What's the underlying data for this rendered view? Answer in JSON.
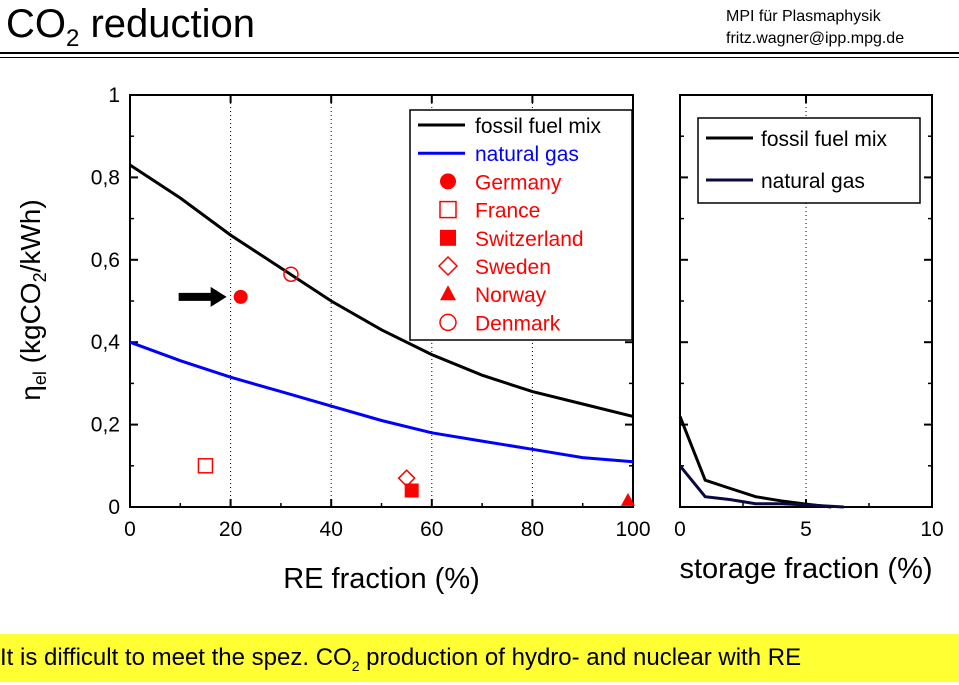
{
  "header": {
    "title_main": "CO",
    "title_sub": "2",
    "title_rest": " reduction",
    "affiliation_line1": "MPI für Plasmaphysik",
    "affiliation_line2": "fritz.wagner@ipp.mpg.de"
  },
  "footer": {
    "text_before": "It is difficult to meet the spez. CO",
    "text_sub": "2",
    "text_after": " production of hydro- and nuclear with RE",
    "background": "#ffff33"
  },
  "chart_data": [
    {
      "type": "line",
      "xlabel": "RE fraction (%)",
      "ylabel_main": "η",
      "ylabel_sub": "el",
      "ylabel_rest": " (kgCO",
      "ylabel_sub2": "2",
      "ylabel_end": "/kWh)",
      "xlim": [
        0,
        100
      ],
      "ylim": [
        0,
        1
      ],
      "x_ticks": [
        "0",
        "20",
        "40",
        "60",
        "80",
        "100"
      ],
      "y_ticks": [
        "0",
        "0,2",
        "0,4",
        "0,6",
        "0,8",
        "1"
      ],
      "grid": "vertical dotted",
      "legend_position": "top-right",
      "series": [
        {
          "name": "fossil fuel mix",
          "color": "#000000",
          "x": [
            0,
            10,
            20,
            30,
            40,
            50,
            60,
            70,
            80,
            90,
            100
          ],
          "y": [
            0.83,
            0.75,
            0.66,
            0.58,
            0.5,
            0.43,
            0.37,
            0.32,
            0.28,
            0.25,
            0.22
          ]
        },
        {
          "name": "natural gas",
          "color": "#0000ff",
          "x": [
            0,
            10,
            20,
            30,
            40,
            50,
            60,
            70,
            80,
            90,
            100
          ],
          "y": [
            0.4,
            0.355,
            0.315,
            0.28,
            0.245,
            0.21,
            0.18,
            0.16,
            0.14,
            0.12,
            0.11
          ]
        }
      ],
      "points": [
        {
          "name": "Germany",
          "marker": "filled-circle",
          "color": "#ff0000",
          "x": 22,
          "y": 0.51
        },
        {
          "name": "France",
          "marker": "open-square",
          "color": "#ff0000",
          "x": 15,
          "y": 0.1
        },
        {
          "name": "Switzerland",
          "marker": "filled-square",
          "color": "#ff0000",
          "x": 56,
          "y": 0.04
        },
        {
          "name": "Sweden",
          "marker": "open-diamond",
          "color": "#ff0000",
          "x": 55,
          "y": 0.07
        },
        {
          "name": "Norway",
          "marker": "filled-triangle",
          "color": "#ff0000",
          "x": 99,
          "y": 0.015
        },
        {
          "name": "Denmark",
          "marker": "open-circle",
          "color": "#ff0000",
          "x": 32,
          "y": 0.565
        }
      ],
      "arrow_target": "Germany"
    },
    {
      "type": "line",
      "xlabel": "storage fraction (%)",
      "xlim": [
        0,
        10
      ],
      "ylim": [
        0,
        1
      ],
      "x_ticks": [
        "0",
        "5",
        "10"
      ],
      "grid": "vertical dotted",
      "legend_position": "top-right",
      "series": [
        {
          "name": "fossil fuel mix",
          "color": "#000000",
          "x": [
            0,
            1,
            2,
            3,
            4,
            5,
            6
          ],
          "y": [
            0.22,
            0.065,
            0.045,
            0.025,
            0.015,
            0.007,
            0.0
          ]
        },
        {
          "name": "natural gas",
          "color": "#0a0a40",
          "x": [
            0,
            1,
            2,
            3,
            4,
            5,
            6.5
          ],
          "y": [
            0.1,
            0.025,
            0.018,
            0.008,
            0.008,
            0.005,
            0.0
          ]
        }
      ]
    }
  ]
}
